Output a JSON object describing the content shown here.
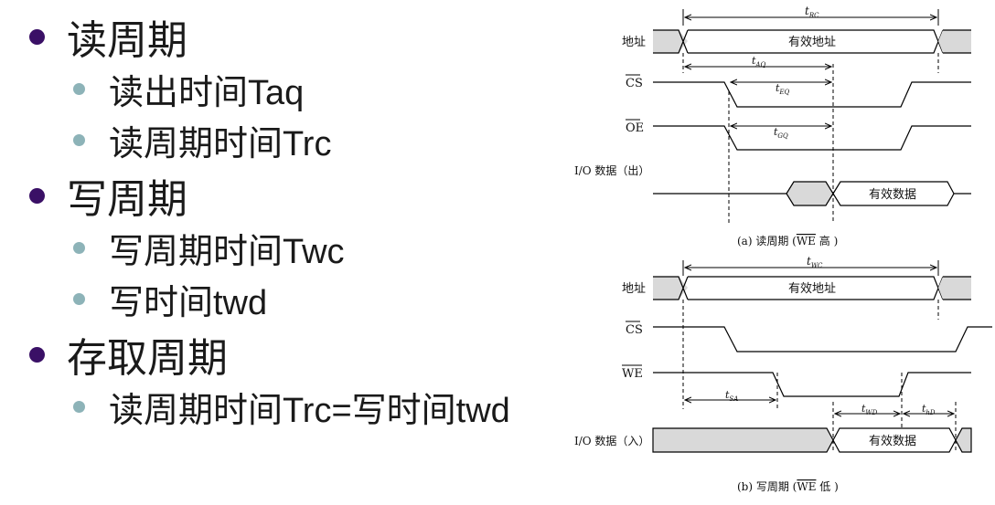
{
  "bullets": [
    {
      "level": 1,
      "text": "读周期"
    },
    {
      "level": 2,
      "text": "读出时间Taq"
    },
    {
      "level": 2,
      "text": "读周期时间Trc"
    },
    {
      "level": 1,
      "text": "写周期"
    },
    {
      "level": 2,
      "text": "写周期时间Twc"
    },
    {
      "level": 2,
      "text": "写时间twd"
    },
    {
      "level": 1,
      "text": "存取周期"
    },
    {
      "level": 2,
      "text": "读周期时间Trc=写时间twd"
    }
  ],
  "diagram_a": {
    "addr_label": "地址",
    "addr_value": "有效地址",
    "cs_label": "CS",
    "oe_label": "OE",
    "io_label": "I/O 数据（出）",
    "io_value": "有效数据",
    "t_rc": "t",
    "t_rc_sub": "RC",
    "t_aq": "t",
    "t_aq_sub": "AQ",
    "t_eq": "t",
    "t_eq_sub": "EQ",
    "t_gq": "t",
    "t_gq_sub": "GQ",
    "caption_pre": "(a) 读周期 (",
    "caption_we": "WE",
    "caption_post": " 高 )"
  },
  "diagram_b": {
    "addr_label": "地址",
    "addr_value": "有效地址",
    "cs_label": "CS",
    "we_label": "WE",
    "io_label": "I/O 数据（入）",
    "io_value": "有效数据",
    "t_wc": "t",
    "t_wc_sub": "WC",
    "t_sa": "t",
    "t_sa_sub": "SA",
    "t_wd": "t",
    "t_wd_sub": "WD",
    "t_hd": "t",
    "t_hd_sub": "hD",
    "caption_pre": "(b) 写周期 (",
    "caption_we": "WE",
    "caption_post": " 低 )"
  },
  "colors": {
    "bullet_l1": "#3a1066",
    "bullet_l2": "#8db3b8",
    "shade": "#d9d9d9"
  }
}
